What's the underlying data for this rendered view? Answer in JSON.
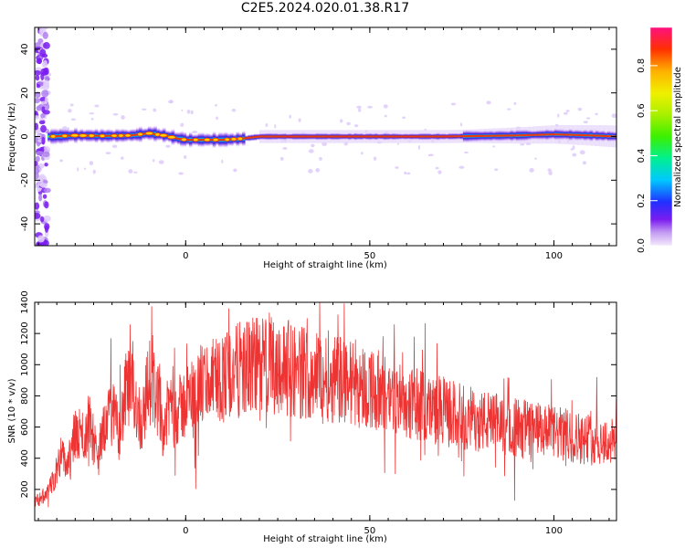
{
  "title": "C2E5.2024.020.01.38.R17",
  "colors": {
    "line": "#ee3333",
    "axis": "#000000",
    "background": "#ffffff"
  },
  "chart_data": [
    {
      "type": "heatmap",
      "id": "spectrogram",
      "xlabel": "Height of straight line (km)",
      "ylabel": "Frequency (Hz)",
      "xlim": [
        -41,
        117
      ],
      "ylim": [
        -50,
        50
      ],
      "x_ticks": [
        0,
        50,
        100
      ],
      "y_ticks": [
        -40,
        -20,
        0,
        20,
        40
      ],
      "colorbar": {
        "label": "Normalized spectral amplitude",
        "range": [
          0.0,
          0.97
        ],
        "ticks": [
          0.0,
          0.2,
          0.4,
          0.6,
          0.8
        ],
        "colormap": "rainbow"
      },
      "ridge": {
        "description_of_values": "peak frequency (Hz) vs height (km)",
        "x": [
          -37,
          -30,
          -22,
          -15,
          -10,
          -6,
          -2,
          0,
          5,
          10,
          15,
          20,
          30,
          50,
          70,
          90,
          100,
          110,
          117
        ],
        "y": [
          0,
          0.5,
          0.3,
          0.5,
          1.5,
          0.5,
          -1,
          -1.5,
          -1.5,
          -1.5,
          -1,
          0,
          0,
          0,
          0,
          0.5,
          1,
          0.5,
          0
        ]
      }
    },
    {
      "type": "line",
      "id": "snr",
      "xlabel": "Height of straight line (km)",
      "ylabel": "SNR (10 * v/v)",
      "xlim": [
        -41,
        117
      ],
      "ylim": [
        0,
        1400
      ],
      "x_ticks": [
        0,
        50,
        100
      ],
      "y_ticks": [
        200,
        400,
        600,
        800,
        1000,
        1200,
        1400
      ],
      "series": [
        {
          "envelope_x": [
            -41,
            -38,
            -36,
            -34,
            -32,
            -30,
            -28,
            -26,
            -24,
            -22,
            -20,
            -18,
            -16,
            -14,
            -12,
            -10,
            -8,
            -6,
            -4,
            -2,
            0,
            5,
            10,
            15,
            20,
            25,
            30,
            40,
            50,
            60,
            70,
            80,
            90,
            100,
            110,
            117
          ],
          "envelope_y": [
            120,
            160,
            250,
            420,
            350,
            560,
            500,
            650,
            380,
            620,
            700,
            560,
            850,
            800,
            620,
            900,
            820,
            580,
            780,
            700,
            760,
            880,
            920,
            970,
            1000,
            1000,
            960,
            920,
            850,
            760,
            700,
            640,
            600,
            560,
            520,
            500
          ]
        }
      ]
    }
  ]
}
